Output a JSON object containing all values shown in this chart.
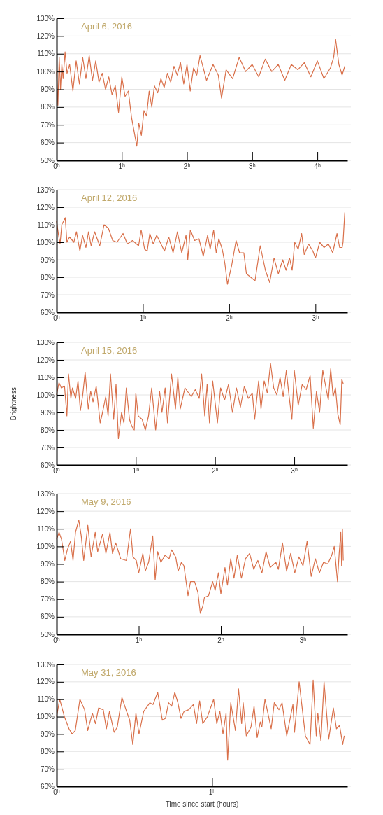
{
  "chart_data": [
    {
      "type": "line",
      "title": "April 6, 2016",
      "xlim": [
        0,
        4.46
      ],
      "xticks": [
        {
          "value": 0,
          "label": "0$^{h}$"
        },
        {
          "value": 1,
          "label": "1$^{h}$"
        },
        {
          "value": 2,
          "label": "2$^{h}$"
        },
        {
          "value": 3,
          "label": "3$^{h}$"
        },
        {
          "value": 4,
          "label": "4$^{h}$"
        }
      ],
      "ylim": [
        50,
        130
      ],
      "yticks": [
        {
          "value": 50,
          "label": "50%"
        },
        {
          "value": 60,
          "label": "60%"
        },
        {
          "value": 70,
          "label": "70%"
        },
        {
          "value": 80,
          "label": "80%"
        },
        {
          "value": 90,
          "label": "90%"
        },
        {
          "value": 100,
          "label": "100%"
        },
        {
          "value": 110,
          "label": "110%"
        },
        {
          "value": 120,
          "label": "120%"
        },
        {
          "value": 130,
          "label": "130%"
        }
      ],
      "grid": "y",
      "x": [
        0,
        0.02,
        0.04,
        0.06,
        0.08,
        0.1,
        0.13,
        0.16,
        0.2,
        0.25,
        0.3,
        0.35,
        0.4,
        0.45,
        0.5,
        0.55,
        0.6,
        0.65,
        0.7,
        0.75,
        0.8,
        0.85,
        0.9,
        0.95,
        1.0,
        1.05,
        1.1,
        1.15,
        1.23,
        1.26,
        1.3,
        1.34,
        1.38,
        1.42,
        1.46,
        1.5,
        1.55,
        1.6,
        1.65,
        1.7,
        1.75,
        1.8,
        1.85,
        1.9,
        1.95,
        2.0,
        2.05,
        2.1,
        2.15,
        2.2,
        2.3,
        2.4,
        2.48,
        2.53,
        2.6,
        2.7,
        2.8,
        2.9,
        3.0,
        3.1,
        3.2,
        3.3,
        3.4,
        3.5,
        3.6,
        3.7,
        3.8,
        3.9,
        4.0,
        4.1,
        4.2,
        4.25,
        4.28,
        4.33,
        4.38,
        4.42
      ],
      "series": [
        {
          "color": "#d9704a",
          "values": [
            100,
            81,
            108,
            90,
            104,
            96,
            111,
            99,
            104,
            89,
            106,
            93,
            108,
            96,
            109,
            95,
            106,
            94,
            99,
            90,
            97,
            87,
            92,
            77,
            97,
            86,
            89,
            74,
            58,
            71,
            64,
            78,
            75,
            89,
            80,
            92,
            88,
            96,
            91,
            99,
            94,
            103,
            98,
            105,
            93,
            104,
            89,
            102,
            98,
            109,
            95,
            104,
            98,
            85,
            101,
            96,
            108,
            100,
            104,
            97,
            107,
            100,
            104,
            95,
            104,
            101,
            105,
            97,
            106,
            96,
            102,
            108,
            118,
            104,
            98,
            103
          ]
        }
      ]
    },
    {
      "type": "line",
      "title": "April 12, 2016",
      "xlim": [
        0,
        3.37
      ],
      "xticks": [
        {
          "value": 0,
          "label": "0$^{h}$"
        },
        {
          "value": 1,
          "label": "1$^{h}$"
        },
        {
          "value": 2,
          "label": "2$^{h}$"
        },
        {
          "value": 3,
          "label": "3$^{h}$"
        }
      ],
      "ylim": [
        60,
        130
      ],
      "yticks": [
        {
          "value": 60,
          "label": "60%"
        },
        {
          "value": 70,
          "label": "70%"
        },
        {
          "value": 80,
          "label": "80%"
        },
        {
          "value": 90,
          "label": "90%"
        },
        {
          "value": 100,
          "label": "100%"
        },
        {
          "value": 110,
          "label": "110%"
        },
        {
          "value": 120,
          "label": "120%"
        },
        {
          "value": 130,
          "label": "130%"
        }
      ],
      "grid": "y",
      "x": [
        0,
        0.02,
        0.04,
        0.06,
        0.1,
        0.12,
        0.15,
        0.2,
        0.23,
        0.27,
        0.3,
        0.34,
        0.37,
        0.4,
        0.44,
        0.5,
        0.55,
        0.6,
        0.65,
        0.7,
        0.77,
        0.82,
        0.88,
        0.95,
        0.98,
        1.02,
        1.05,
        1.08,
        1.12,
        1.16,
        1.2,
        1.25,
        1.3,
        1.35,
        1.4,
        1.45,
        1.5,
        1.52,
        1.55,
        1.6,
        1.65,
        1.7,
        1.75,
        1.78,
        1.82,
        1.85,
        1.88,
        1.92,
        1.95,
        1.98,
        2.03,
        2.08,
        2.12,
        2.17,
        2.2,
        2.25,
        2.3,
        2.36,
        2.42,
        2.47,
        2.52,
        2.57,
        2.62,
        2.66,
        2.7,
        2.73,
        2.76,
        2.8,
        2.84,
        2.87,
        2.92,
        2.97,
        3.0,
        3.05,
        3.1,
        3.15,
        3.2,
        3.25,
        3.28,
        3.31,
        3.32,
        3.34
      ],
      "series": [
        {
          "color": "#d9704a",
          "values": [
            112,
            105,
            99,
            110,
            114,
            100,
            103,
            100,
            106,
            95,
            104,
            97,
            106,
            98,
            106,
            98,
            110,
            108,
            101,
            100,
            105,
            99,
            101,
            98,
            107,
            96,
            95,
            105,
            99,
            104,
            100,
            95,
            103,
            94,
            106,
            94,
            104,
            90,
            107,
            101,
            102,
            92,
            104,
            96,
            107,
            94,
            102,
            96,
            88,
            76,
            87,
            101,
            94,
            94,
            82,
            80,
            78,
            98,
            84,
            77,
            91,
            82,
            90,
            84,
            91,
            84,
            100,
            96,
            105,
            93,
            99,
            95,
            91,
            100,
            97,
            99,
            94,
            105,
            97,
            97,
            100,
            117
          ]
        }
      ]
    },
    {
      "type": "line",
      "title": "April 15, 2016",
      "ylabel": "Brightness",
      "xlim": [
        0,
        3.67
      ],
      "xticks": [
        {
          "value": 0,
          "label": "0$^{h}$"
        },
        {
          "value": 1,
          "label": "1$^{h}$"
        },
        {
          "value": 2,
          "label": "2$^{h}$"
        },
        {
          "value": 3,
          "label": "3$^{h}$"
        }
      ],
      "ylim": [
        60,
        130
      ],
      "yticks": [
        {
          "value": 60,
          "label": "60%"
        },
        {
          "value": 70,
          "label": "70%"
        },
        {
          "value": 80,
          "label": "80%"
        },
        {
          "value": 90,
          "label": "90%"
        },
        {
          "value": 100,
          "label": "100%"
        },
        {
          "value": 110,
          "label": "110%"
        },
        {
          "value": 120,
          "label": "120%"
        },
        {
          "value": 130,
          "label": "130%"
        }
      ],
      "grid": "y",
      "x": [
        0,
        0.03,
        0.06,
        0.1,
        0.13,
        0.15,
        0.18,
        0.2,
        0.24,
        0.27,
        0.3,
        0.33,
        0.36,
        0.4,
        0.43,
        0.46,
        0.5,
        0.55,
        0.58,
        0.62,
        0.65,
        0.68,
        0.72,
        0.75,
        0.78,
        0.82,
        0.85,
        0.88,
        0.92,
        0.95,
        0.98,
        1.0,
        1.03,
        1.08,
        1.12,
        1.16,
        1.2,
        1.25,
        1.3,
        1.33,
        1.37,
        1.4,
        1.45,
        1.5,
        1.53,
        1.56,
        1.62,
        1.7,
        1.75,
        1.8,
        1.83,
        1.87,
        1.9,
        1.93,
        1.97,
        2.0,
        2.03,
        2.07,
        2.12,
        2.17,
        2.22,
        2.27,
        2.32,
        2.37,
        2.42,
        2.47,
        2.5,
        2.55,
        2.58,
        2.62,
        2.66,
        2.7,
        2.74,
        2.78,
        2.82,
        2.86,
        2.9,
        2.93,
        2.97,
        3.0,
        3.05,
        3.1,
        3.15,
        3.2,
        3.24,
        3.28,
        3.32,
        3.36,
        3.4,
        3.43,
        3.46,
        3.49,
        3.52,
        3.55,
        3.58,
        3.6,
        3.62
      ],
      "series": [
        {
          "color": "#d9704a",
          "values": [
            100,
            107,
            104,
            105,
            88,
            112,
            98,
            104,
            98,
            108,
            91,
            100,
            113,
            92,
            102,
            96,
            105,
            84,
            90,
            99,
            88,
            112,
            86,
            106,
            75,
            90,
            84,
            104,
            86,
            82,
            80,
            101,
            88,
            86,
            80,
            88,
            104,
            80,
            102,
            90,
            104,
            84,
            112,
            92,
            110,
            92,
            104,
            99,
            103,
            98,
            112,
            88,
            106,
            84,
            108,
            96,
            84,
            104,
            97,
            106,
            90,
            104,
            93,
            105,
            98,
            101,
            86,
            108,
            92,
            108,
            101,
            118,
            104,
            100,
            110,
            99,
            114,
            101,
            86,
            114,
            94,
            106,
            103,
            111,
            81,
            102,
            90,
            114,
            104,
            97,
            115,
            99,
            104,
            89,
            83,
            109,
            106
          ]
        }
      ]
    },
    {
      "type": "line",
      "title": "May 9, 2016",
      "xlim": [
        0,
        3.54
      ],
      "xticks": [
        {
          "value": 0,
          "label": "0$^{h}$"
        },
        {
          "value": 1,
          "label": "1$^{h}$"
        },
        {
          "value": 2,
          "label": "2$^{h}$"
        },
        {
          "value": 3,
          "label": "3$^{h}$"
        }
      ],
      "ylim": [
        50,
        130
      ],
      "yticks": [
        {
          "value": 50,
          "label": "50%"
        },
        {
          "value": 60,
          "label": "60%"
        },
        {
          "value": 70,
          "label": "70%"
        },
        {
          "value": 80,
          "label": "80%"
        },
        {
          "value": 90,
          "label": "90%"
        },
        {
          "value": 100,
          "label": "100%"
        },
        {
          "value": 110,
          "label": "110%"
        },
        {
          "value": 120,
          "label": "120%"
        },
        {
          "value": 130,
          "label": "130%"
        }
      ],
      "grid": "y",
      "x": [
        0,
        0.03,
        0.06,
        0.1,
        0.13,
        0.17,
        0.2,
        0.23,
        0.27,
        0.3,
        0.33,
        0.38,
        0.42,
        0.47,
        0.5,
        0.56,
        0.6,
        0.65,
        0.68,
        0.72,
        0.78,
        0.85,
        0.9,
        0.93,
        0.97,
        1.0,
        1.05,
        1.08,
        1.12,
        1.17,
        1.2,
        1.23,
        1.27,
        1.32,
        1.37,
        1.4,
        1.45,
        1.48,
        1.52,
        1.55,
        1.6,
        1.63,
        1.68,
        1.72,
        1.75,
        1.78,
        1.8,
        1.85,
        1.9,
        1.93,
        1.97,
        2.0,
        2.05,
        2.08,
        2.12,
        2.16,
        2.2,
        2.25,
        2.3,
        2.35,
        2.4,
        2.45,
        2.5,
        2.55,
        2.6,
        2.67,
        2.7,
        2.75,
        2.8,
        2.85,
        2.9,
        2.95,
        3.0,
        3.05,
        3.1,
        3.15,
        3.2,
        3.25,
        3.3,
        3.35,
        3.38,
        3.42,
        3.44,
        3.46,
        3.47,
        3.48,
        3.49
      ],
      "series": [
        {
          "color": "#d9704a",
          "values": [
            104,
            108,
            104,
            92,
            98,
            103,
            92,
            108,
            115,
            106,
            92,
            112,
            94,
            108,
            97,
            107,
            96,
            108,
            96,
            102,
            93,
            92,
            110,
            94,
            92,
            85,
            96,
            86,
            91,
            106,
            81,
            97,
            91,
            95,
            93,
            98,
            94,
            86,
            91,
            89,
            72,
            80,
            80,
            74,
            62,
            66,
            71,
            72,
            80,
            75,
            85,
            73,
            88,
            78,
            93,
            82,
            95,
            82,
            93,
            96,
            87,
            92,
            85,
            97,
            88,
            91,
            87,
            102,
            86,
            96,
            85,
            94,
            89,
            103,
            83,
            93,
            85,
            91,
            90,
            95,
            100,
            80,
            96,
            108,
            89,
            110,
            92
          ]
        }
      ]
    },
    {
      "type": "line",
      "title": "May 31, 2016",
      "xlabel": "Time since start (hours)",
      "xlim": [
        0,
        1.87
      ],
      "xticks": [
        {
          "value": 0,
          "label": "0$^{h}$"
        },
        {
          "value": 1,
          "label": "1$^{h}$"
        }
      ],
      "ylim": [
        60,
        130
      ],
      "yticks": [
        {
          "value": 60,
          "label": "60%"
        },
        {
          "value": 70,
          "label": "70%"
        },
        {
          "value": 80,
          "label": "80%"
        },
        {
          "value": 90,
          "label": "90%"
        },
        {
          "value": 100,
          "label": "100%"
        },
        {
          "value": 110,
          "label": "110%"
        },
        {
          "value": 120,
          "label": "120%"
        },
        {
          "value": 130,
          "label": "130%"
        }
      ],
      "grid": "y",
      "x": [
        0,
        0.02,
        0.05,
        0.08,
        0.1,
        0.12,
        0.15,
        0.18,
        0.2,
        0.23,
        0.25,
        0.27,
        0.3,
        0.32,
        0.34,
        0.37,
        0.39,
        0.42,
        0.45,
        0.47,
        0.49,
        0.51,
        0.53,
        0.56,
        0.6,
        0.62,
        0.65,
        0.68,
        0.7,
        0.72,
        0.74,
        0.76,
        0.78,
        0.8,
        0.82,
        0.85,
        0.88,
        0.9,
        0.92,
        0.94,
        0.97,
        1.01,
        1.03,
        1.05,
        1.07,
        1.09,
        1.1,
        1.12,
        1.15,
        1.17,
        1.19,
        1.2,
        1.22,
        1.25,
        1.27,
        1.29,
        1.31,
        1.32,
        1.34,
        1.38,
        1.4,
        1.43,
        1.45,
        1.48,
        1.52,
        1.53,
        1.56,
        1.6,
        1.63,
        1.65,
        1.67,
        1.68,
        1.7,
        1.72,
        1.75,
        1.78,
        1.8,
        1.82,
        1.84,
        1.85
      ],
      "series": [
        {
          "color": "#d9704a",
          "values": [
            100,
            110,
            100,
            93,
            90,
            92,
            110,
            104,
            92,
            102,
            96,
            105,
            104,
            93,
            103,
            91,
            94,
            111,
            103,
            98,
            84,
            102,
            90,
            103,
            108,
            107,
            114,
            98,
            99,
            108,
            106,
            114,
            108,
            99,
            103,
            104,
            107,
            96,
            109,
            96,
            100,
            110,
            96,
            103,
            90,
            102,
            75,
            108,
            92,
            116,
            96,
            108,
            89,
            94,
            106,
            88,
            97,
            94,
            110,
            93,
            108,
            104,
            108,
            89,
            107,
            91,
            120,
            89,
            84,
            121,
            89,
            102,
            86,
            120,
            87,
            105,
            93,
            95,
            84,
            89
          ]
        }
      ]
    }
  ]
}
